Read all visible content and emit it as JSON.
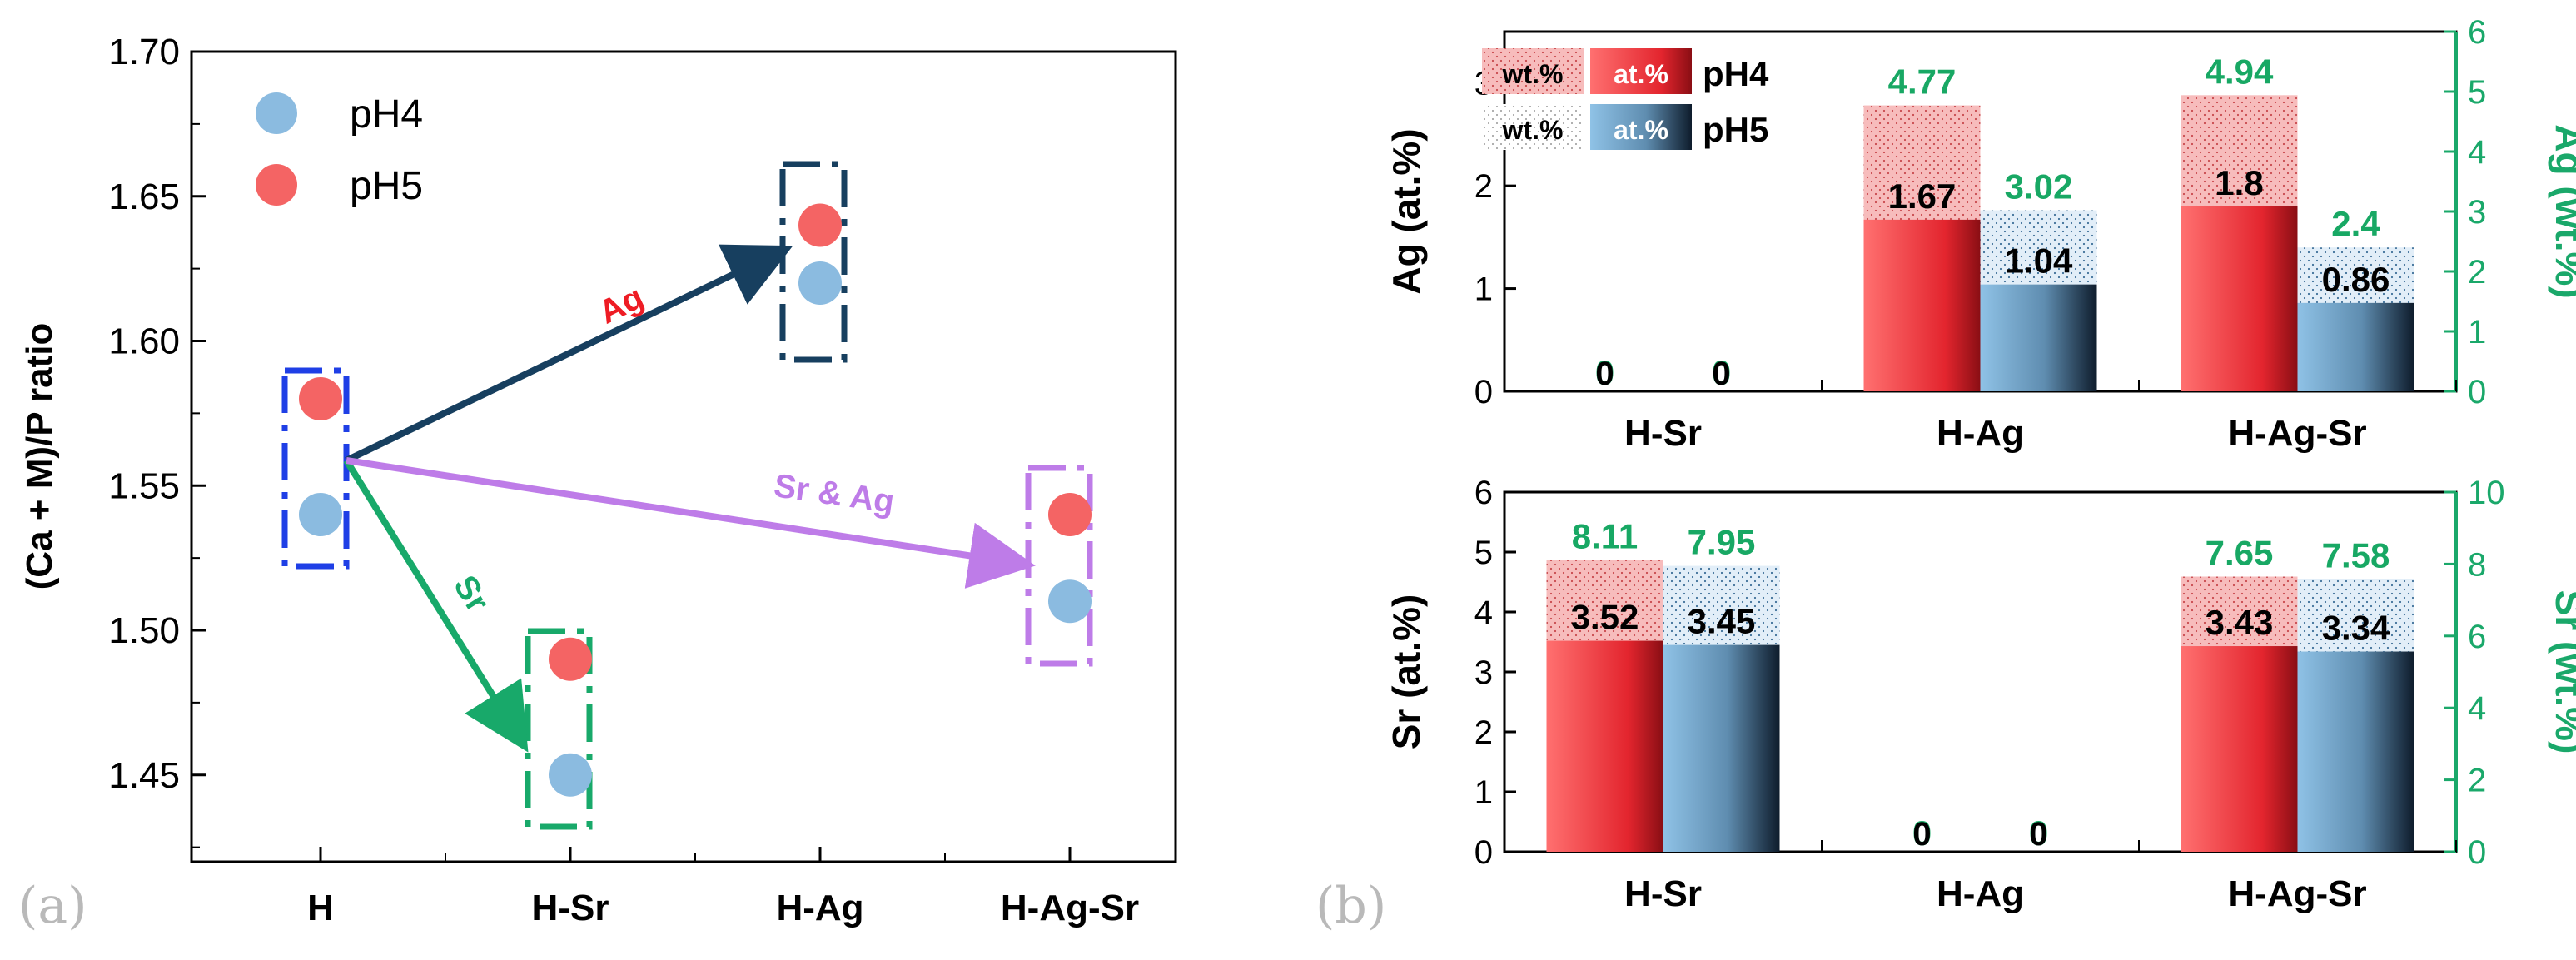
{
  "colors": {
    "ph4_marker": "#f46464",
    "ph5_marker": "#8bbbe0",
    "h_box": "#1f3fe6",
    "ag_arrow": "#173f5f",
    "sr_arrow": "#18a96a",
    "srag_arrow": "#be7ce8",
    "wt_axis": "#1aa86a",
    "red_bar": "#e0202a",
    "blue_bar": "#7fb2d6",
    "wt_label": "#18a864"
  },
  "chart_data": [
    {
      "type": "scatter",
      "panel_label": "(a)",
      "ylabel": "(Ca + M)/P ratio",
      "ylim": [
        1.42,
        1.7
      ],
      "yticks": [
        "1.45",
        "1.50",
        "1.55",
        "1.60",
        "1.65",
        "1.70"
      ],
      "categories": [
        "H",
        "H-Sr",
        "H-Ag",
        "H-Ag-Sr"
      ],
      "legend": [
        "pH4",
        "pH5"
      ],
      "legend_position": "top-left",
      "series": [
        {
          "name": "pH4",
          "values": [
            1.54,
            1.45,
            1.62,
            1.51
          ]
        },
        {
          "name": "pH5",
          "values": [
            1.58,
            1.49,
            1.64,
            1.54
          ]
        }
      ],
      "arrows": [
        {
          "label": "Ag",
          "from": "H",
          "to": "H-Ag"
        },
        {
          "label": "Sr",
          "from": "H",
          "to": "H-Sr"
        },
        {
          "label": "Sr & Ag",
          "from": "H",
          "to": "H-Ag-Sr"
        }
      ]
    },
    {
      "type": "bar",
      "panel_label": "(b)",
      "categories": [
        "H-Sr",
        "H-Ag",
        "H-Ag-Sr"
      ],
      "ylabel": "Ag (at.%)",
      "ylabel_right": "Ag (wt.%)",
      "ylim": [
        0,
        3.5
      ],
      "ylim_right": [
        0,
        6
      ],
      "yticks": [
        "0",
        "1",
        "2",
        "3"
      ],
      "yticks_right": [
        "0",
        "1",
        "2",
        "3",
        "4",
        "5",
        "6"
      ],
      "legend": {
        "wt": "wt.%",
        "at": "at.%",
        "pH4": "pH4",
        "pH5": "pH5"
      },
      "legend_position": "top-left",
      "series": [
        {
          "name": "pH4",
          "at_values": [
            0,
            1.67,
            1.8
          ],
          "wt_values": [
            0,
            4.77,
            4.94
          ],
          "at_labels": [
            "0",
            "1.67",
            "1.8"
          ],
          "wt_labels": [
            "0",
            "4.77",
            "4.94"
          ]
        },
        {
          "name": "pH5",
          "at_values": [
            0,
            1.04,
            0.86
          ],
          "wt_values": [
            0,
            3.02,
            2.4
          ],
          "at_labels": [
            "0",
            "1.04",
            "0.86"
          ],
          "wt_labels": [
            "0",
            "3.02",
            "2.4"
          ]
        }
      ]
    },
    {
      "type": "bar",
      "categories": [
        "H-Sr",
        "H-Ag",
        "H-Ag-Sr"
      ],
      "ylabel": "Sr (at.%)",
      "ylabel_right": "Sr (wt.%)",
      "ylim": [
        0,
        6
      ],
      "ylim_right": [
        0,
        10
      ],
      "yticks": [
        "0",
        "1",
        "2",
        "3",
        "4",
        "5",
        "6"
      ],
      "yticks_right": [
        "0",
        "2",
        "4",
        "6",
        "8",
        "10"
      ],
      "series": [
        {
          "name": "pH4",
          "at_values": [
            3.52,
            0,
            3.43
          ],
          "wt_values": [
            8.11,
            0,
            7.65
          ],
          "at_labels": [
            "3.52",
            "0",
            "3.43"
          ],
          "wt_labels": [
            "8.11",
            "0",
            "7.65"
          ]
        },
        {
          "name": "pH5",
          "at_values": [
            3.45,
            0,
            3.34
          ],
          "wt_values": [
            7.95,
            0,
            7.58
          ],
          "at_labels": [
            "3.45",
            "0",
            "3.34"
          ],
          "wt_labels": [
            "7.95",
            "0",
            "7.58"
          ]
        }
      ]
    }
  ]
}
